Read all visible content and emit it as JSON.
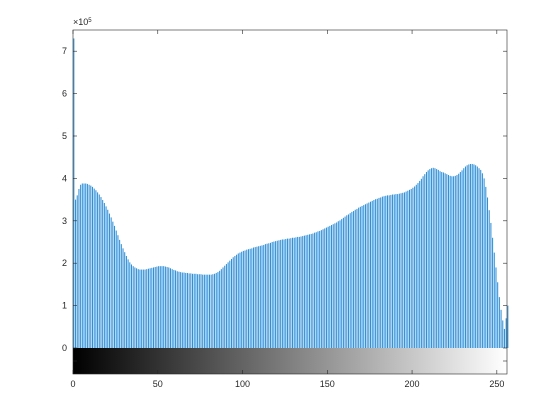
{
  "chart_data": {
    "type": "bar",
    "title": "",
    "xlabel": "",
    "ylabel": "",
    "bar_color": "#2f8fd8",
    "axis_color": "#262626",
    "y_multiplier_label": "×10",
    "y_multiplier_exponent": "5",
    "xlim": [
      0,
      255
    ],
    "ylim": [
      0,
      7.5
    ],
    "y_scale_factor": 100000,
    "x_ticks": [
      0,
      50,
      100,
      150,
      200,
      250
    ],
    "x_tick_labels": [
      "0",
      "50",
      "100",
      "150",
      "200",
      "250"
    ],
    "y_ticks": [
      0,
      1,
      2,
      3,
      4,
      5,
      6,
      7
    ],
    "y_tick_labels": [
      "0",
      "1",
      "2",
      "3",
      "4",
      "5",
      "6",
      "7"
    ],
    "grid": false,
    "colorbar": {
      "type": "grayscale",
      "from": "#000000",
      "to": "#ffffff"
    },
    "series": [
      {
        "x_start": 0,
        "x_step": 1,
        "values": [
          7.3,
          3.5,
          3.6,
          3.75,
          3.85,
          3.88,
          3.88,
          3.88,
          3.87,
          3.85,
          3.83,
          3.8,
          3.76,
          3.72,
          3.67,
          3.62,
          3.56,
          3.49,
          3.42,
          3.34,
          3.26,
          3.17,
          3.08,
          2.98,
          2.88,
          2.77,
          2.66,
          2.55,
          2.45,
          2.35,
          2.26,
          2.17,
          2.09,
          2.02,
          1.97,
          1.93,
          1.9,
          1.88,
          1.86,
          1.85,
          1.85,
          1.85,
          1.85,
          1.86,
          1.87,
          1.88,
          1.89,
          1.9,
          1.91,
          1.92,
          1.93,
          1.93,
          1.93,
          1.93,
          1.92,
          1.91,
          1.9,
          1.88,
          1.86,
          1.84,
          1.83,
          1.81,
          1.8,
          1.79,
          1.78,
          1.78,
          1.77,
          1.77,
          1.76,
          1.76,
          1.75,
          1.75,
          1.75,
          1.74,
          1.74,
          1.74,
          1.73,
          1.73,
          1.73,
          1.73,
          1.73,
          1.73,
          1.74,
          1.75,
          1.77,
          1.79,
          1.82,
          1.86,
          1.9,
          1.94,
          1.98,
          2.02,
          2.06,
          2.1,
          2.14,
          2.17,
          2.2,
          2.23,
          2.25,
          2.27,
          2.29,
          2.3,
          2.32,
          2.33,
          2.34,
          2.35,
          2.37,
          2.38,
          2.39,
          2.4,
          2.41,
          2.42,
          2.43,
          2.45,
          2.46,
          2.47,
          2.48,
          2.5,
          2.51,
          2.52,
          2.53,
          2.54,
          2.55,
          2.56,
          2.56,
          2.57,
          2.58,
          2.58,
          2.59,
          2.6,
          2.6,
          2.61,
          2.62,
          2.62,
          2.63,
          2.64,
          2.65,
          2.66,
          2.67,
          2.68,
          2.69,
          2.7,
          2.72,
          2.73,
          2.75,
          2.76,
          2.78,
          2.8,
          2.82,
          2.84,
          2.86,
          2.88,
          2.9,
          2.92,
          2.94,
          2.96,
          2.99,
          3.01,
          3.04,
          3.07,
          3.1,
          3.13,
          3.15,
          3.18,
          3.21,
          3.23,
          3.26,
          3.28,
          3.31,
          3.33,
          3.35,
          3.37,
          3.39,
          3.41,
          3.43,
          3.45,
          3.47,
          3.49,
          3.51,
          3.52,
          3.54,
          3.55,
          3.57,
          3.58,
          3.59,
          3.6,
          3.6,
          3.61,
          3.62,
          3.62,
          3.63,
          3.63,
          3.64,
          3.65,
          3.66,
          3.67,
          3.69,
          3.71,
          3.73,
          3.75,
          3.78,
          3.81,
          3.85,
          3.89,
          3.94,
          3.99,
          4.05,
          4.1,
          4.15,
          4.19,
          4.22,
          4.24,
          4.25,
          4.24,
          4.22,
          4.2,
          4.17,
          4.15,
          4.14,
          4.12,
          4.1,
          4.08,
          4.06,
          4.05,
          4.05,
          4.06,
          4.08,
          4.11,
          4.15,
          4.19,
          4.24,
          4.28,
          4.31,
          4.33,
          4.34,
          4.34,
          4.33,
          4.31,
          4.28,
          4.24,
          4.2,
          4.12,
          4.0,
          3.8,
          3.55,
          3.25,
          2.95,
          2.6,
          2.25,
          1.9,
          1.55,
          1.2,
          0.9,
          0.65,
          0.45,
          0.7,
          1.0
        ]
      }
    ]
  }
}
